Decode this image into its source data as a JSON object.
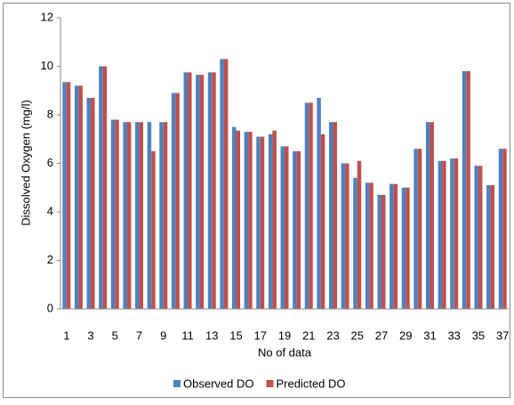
{
  "chart_data": {
    "type": "bar",
    "ylabel": "Dissolved Oxygen (mg/l)",
    "xlabel": "No of data",
    "categories": [
      1,
      null,
      3,
      null,
      5,
      null,
      7,
      null,
      9,
      null,
      11,
      null,
      13,
      null,
      15,
      null,
      17,
      null,
      19,
      null,
      21,
      null,
      23,
      null,
      25,
      null,
      27,
      null,
      29,
      null,
      31,
      null,
      33,
      null,
      35,
      null,
      37
    ],
    "series": [
      {
        "name": "Observed DO",
        "color": "#4f81bd",
        "values": [
          9.35,
          9.2,
          8.7,
          10.0,
          7.8,
          7.7,
          7.7,
          7.7,
          7.7,
          8.9,
          9.75,
          9.65,
          9.75,
          10.3,
          7.5,
          7.3,
          7.1,
          7.2,
          6.7,
          6.5,
          8.5,
          8.7,
          7.7,
          6.0,
          5.4,
          5.2,
          4.7,
          5.15,
          5.0,
          6.6,
          7.7,
          6.1,
          6.2,
          9.8,
          5.9,
          5.1,
          6.6
        ]
      },
      {
        "name": "Predicted DO",
        "color": "#c0504d",
        "values": [
          9.35,
          9.2,
          8.7,
          10.0,
          7.8,
          7.7,
          7.7,
          6.5,
          7.7,
          8.9,
          9.75,
          9.65,
          9.75,
          10.3,
          7.35,
          7.3,
          7.1,
          7.35,
          6.7,
          6.5,
          8.5,
          7.2,
          7.7,
          6.0,
          6.1,
          5.2,
          4.7,
          5.15,
          5.0,
          6.6,
          7.7,
          6.1,
          6.2,
          9.8,
          5.9,
          5.1,
          6.6
        ]
      }
    ],
    "ylim": [
      0,
      12
    ],
    "yticks": [
      0,
      2,
      4,
      6,
      8,
      10,
      12
    ],
    "legend": "bottom",
    "grid": false
  }
}
